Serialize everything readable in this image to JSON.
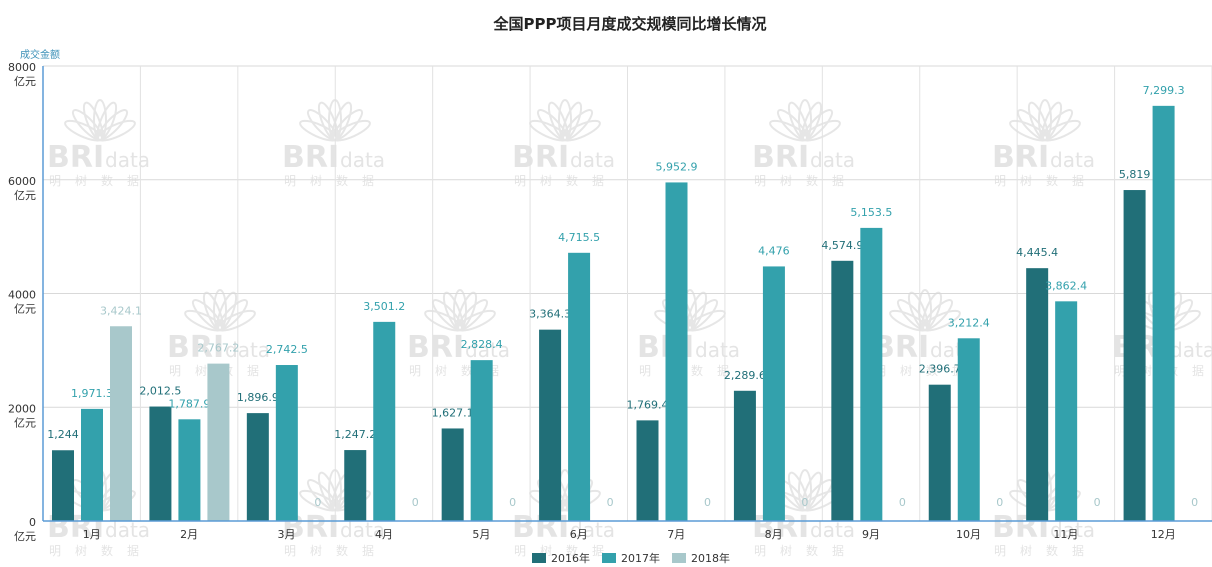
{
  "chart_data": {
    "type": "bar",
    "title": "全国PPP项目月度成交规模同比增长情况",
    "ylabel": "成交金额",
    "ylim": [
      0,
      8000
    ],
    "yticks": [
      {
        "value": 0,
        "label": "0",
        "unit": "亿元"
      },
      {
        "value": 2000,
        "label": "2000",
        "unit": "亿元"
      },
      {
        "value": 4000,
        "label": "4000",
        "unit": "亿元"
      },
      {
        "value": 6000,
        "label": "6000",
        "unit": "亿元"
      },
      {
        "value": 8000,
        "label": "8000",
        "unit": "亿元"
      }
    ],
    "categories": [
      "1月",
      "2月",
      "3月",
      "4月",
      "5月",
      "6月",
      "7月",
      "8月",
      "9月",
      "10月",
      "11月",
      "12月"
    ],
    "series": [
      {
        "name": "2016年",
        "color": "#216f78",
        "values": [
          1244,
          2012.5,
          1896.9,
          1247.2,
          1627.1,
          3364.3,
          1769.4,
          2289.6,
          4574.9,
          2396.7,
          4445.4,
          5819
        ],
        "labels": [
          "1,244",
          "2,012.5",
          "1,896.9",
          "1,247.2",
          "1,627.1",
          "3,364.3",
          "1,769.4",
          "2,289.6",
          "4,574.9",
          "2,396.7",
          "4,445.4",
          "5,819"
        ]
      },
      {
        "name": "2017年",
        "color": "#33a1ac",
        "values": [
          1971.3,
          1787.9,
          2742.5,
          3501.2,
          2828.4,
          4715.5,
          5952.9,
          4476,
          5153.5,
          3212.4,
          3862.4,
          7299.3
        ],
        "labels": [
          "1,971.3",
          "1,787.9",
          "2,742.5",
          "3,501.2",
          "2,828.4",
          "4,715.5",
          "5,952.9",
          "4,476",
          "5,153.5",
          "3,212.4",
          "3,862.4",
          "7,299.3"
        ]
      },
      {
        "name": "2018年",
        "color": "#a8c8cb",
        "values": [
          3424.1,
          2767.2,
          0,
          0,
          0,
          0,
          0,
          0,
          0,
          0,
          0,
          0
        ],
        "labels": [
          "3,424.1",
          "2,767.2",
          "0",
          "0",
          "0",
          "0",
          "0",
          "0",
          "0",
          "0",
          "0",
          "0"
        ]
      }
    ],
    "legend": "bottom-center",
    "grid": true
  },
  "watermark": {
    "brand": "BRI",
    "brand2": "data",
    "cn": "明树数据"
  }
}
